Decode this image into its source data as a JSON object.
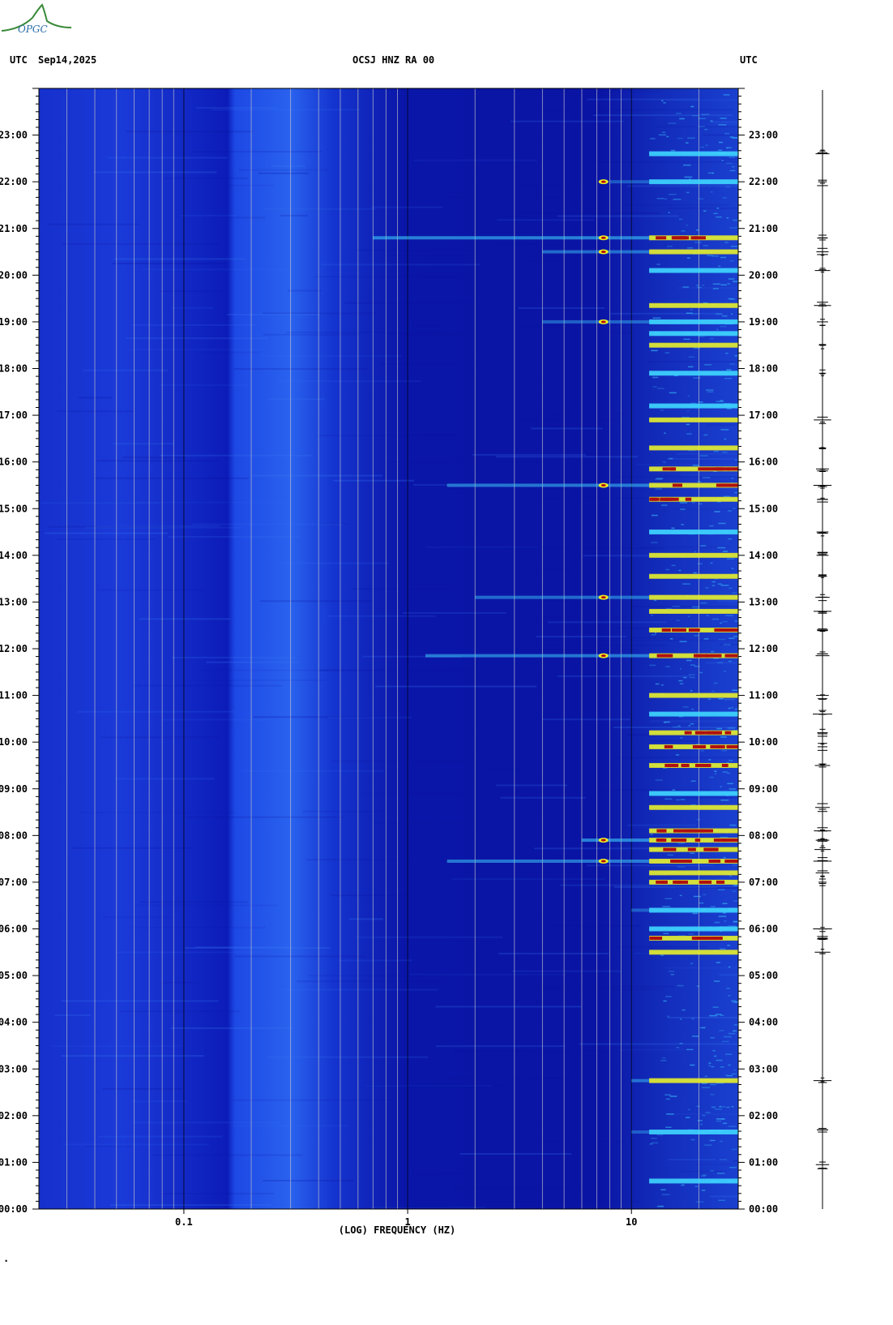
{
  "header": {
    "left_utc": "UTC",
    "date": "Sep14,2025",
    "station": "OCSJ HNZ RA 00",
    "right_utc": "UTC"
  },
  "logo": {
    "text": "OPGC",
    "icon": "mountain-logo-icon"
  },
  "chart_data": {
    "type": "heatmap",
    "title": "OCSJ HNZ RA 00",
    "xlabel": "(LOG) FREQUENCY (HZ)",
    "ylabel": "",
    "x_scale": "log",
    "xlim": [
      0.0225,
      30
    ],
    "x_ticks": [
      {
        "value": 0.1,
        "label": "0.1"
      },
      {
        "value": 1,
        "label": "1"
      },
      {
        "value": 10,
        "label": "10"
      }
    ],
    "ylim_hours": [
      0,
      24
    ],
    "y_ticks": [
      {
        "hour": 0,
        "label": "00:00"
      },
      {
        "hour": 1,
        "label": "01:00"
      },
      {
        "hour": 2,
        "label": "02:00"
      },
      {
        "hour": 3,
        "label": "03:00"
      },
      {
        "hour": 4,
        "label": "04:00"
      },
      {
        "hour": 5,
        "label": "05:00"
      },
      {
        "hour": 6,
        "label": "06:00"
      },
      {
        "hour": 7,
        "label": "07:00"
      },
      {
        "hour": 8,
        "label": "08:00"
      },
      {
        "hour": 9,
        "label": "09:00"
      },
      {
        "hour": 10,
        "label": "10:00"
      },
      {
        "hour": 11,
        "label": "11:00"
      },
      {
        "hour": 12,
        "label": "12:00"
      },
      {
        "hour": 13,
        "label": "13:00"
      },
      {
        "hour": 14,
        "label": "14:00"
      },
      {
        "hour": 15,
        "label": "15:00"
      },
      {
        "hour": 16,
        "label": "16:00"
      },
      {
        "hour": 17,
        "label": "17:00"
      },
      {
        "hour": 18,
        "label": "18:00"
      },
      {
        "hour": 19,
        "label": "19:00"
      },
      {
        "hour": 20,
        "label": "20:00"
      },
      {
        "hour": 21,
        "label": "21:00"
      },
      {
        "hour": 22,
        "label": "22:00"
      },
      {
        "hour": 23,
        "label": "23:00"
      }
    ],
    "grid_frequencies": [
      0.03,
      0.04,
      0.05,
      0.06,
      0.07,
      0.08,
      0.09,
      0.2,
      0.3,
      0.4,
      0.5,
      0.6,
      0.7,
      0.8,
      0.9,
      2,
      3,
      4,
      5,
      6,
      7,
      8,
      9,
      20
    ],
    "colors": {
      "background": "#0a14a8",
      "low": "#1535d0",
      "mid": "#2a6cf0",
      "high": "#40d8ff",
      "peak_yellow": "#f0f020",
      "peak_red": "#b01010"
    },
    "events": [
      {
        "hour": 0.6,
        "fmin": 12,
        "fmax": 30,
        "level": 0.5
      },
      {
        "hour": 1.65,
        "fmin": 10,
        "fmax": 30,
        "level": 0.6
      },
      {
        "hour": 2.75,
        "fmin": 10,
        "fmax": 30,
        "level": 0.8
      },
      {
        "hour": 5.5,
        "fmin": 12,
        "fmax": 30,
        "level": 0.8
      },
      {
        "hour": 5.8,
        "fmin": 12,
        "fmax": 30,
        "level": 0.9
      },
      {
        "hour": 6.0,
        "fmin": 12,
        "fmax": 30,
        "level": 0.7
      },
      {
        "hour": 6.4,
        "fmin": 10,
        "fmax": 30,
        "level": 0.6
      },
      {
        "hour": 7.0,
        "fmin": 12,
        "fmax": 30,
        "level": 0.9
      },
      {
        "hour": 7.2,
        "fmin": 12,
        "fmax": 30,
        "level": 0.8
      },
      {
        "hour": 7.45,
        "fmin": 1.5,
        "fmax": 30,
        "level": 0.9
      },
      {
        "hour": 7.7,
        "fmin": 12,
        "fmax": 30,
        "level": 0.95
      },
      {
        "hour": 7.9,
        "fmin": 6,
        "fmax": 30,
        "level": 1.0
      },
      {
        "hour": 8.1,
        "fmin": 12,
        "fmax": 30,
        "level": 1.0
      },
      {
        "hour": 8.6,
        "fmin": 12,
        "fmax": 30,
        "level": 0.8
      },
      {
        "hour": 8.9,
        "fmin": 12,
        "fmax": 30,
        "level": 0.7
      },
      {
        "hour": 9.5,
        "fmin": 12,
        "fmax": 30,
        "level": 0.9
      },
      {
        "hour": 9.9,
        "fmin": 12,
        "fmax": 30,
        "level": 1.0
      },
      {
        "hour": 10.2,
        "fmin": 12,
        "fmax": 30,
        "level": 0.9
      },
      {
        "hour": 10.6,
        "fmin": 12,
        "fmax": 30,
        "level": 0.6
      },
      {
        "hour": 11.0,
        "fmin": 12,
        "fmax": 30,
        "level": 0.8
      },
      {
        "hour": 11.85,
        "fmin": 1.2,
        "fmax": 30,
        "level": 0.9
      },
      {
        "hour": 12.4,
        "fmin": 12,
        "fmax": 30,
        "level": 0.9
      },
      {
        "hour": 12.8,
        "fmin": 12,
        "fmax": 30,
        "level": 0.8
      },
      {
        "hour": 13.1,
        "fmin": 2,
        "fmax": 30,
        "level": 0.8
      },
      {
        "hour": 13.55,
        "fmin": 12,
        "fmax": 30,
        "level": 0.8
      },
      {
        "hour": 14.0,
        "fmin": 12,
        "fmax": 30,
        "level": 0.8
      },
      {
        "hour": 14.5,
        "fmin": 12,
        "fmax": 30,
        "level": 0.7
      },
      {
        "hour": 15.2,
        "fmin": 12,
        "fmax": 30,
        "level": 1.0
      },
      {
        "hour": 15.5,
        "fmin": 1.5,
        "fmax": 30,
        "level": 0.9
      },
      {
        "hour": 15.85,
        "fmin": 12,
        "fmax": 30,
        "level": 1.0
      },
      {
        "hour": 16.3,
        "fmin": 12,
        "fmax": 30,
        "level": 0.8
      },
      {
        "hour": 16.9,
        "fmin": 12,
        "fmax": 30,
        "level": 0.8
      },
      {
        "hour": 17.2,
        "fmin": 12,
        "fmax": 30,
        "level": 0.7
      },
      {
        "hour": 17.9,
        "fmin": 12,
        "fmax": 30,
        "level": 0.6
      },
      {
        "hour": 18.5,
        "fmin": 12,
        "fmax": 30,
        "level": 0.8
      },
      {
        "hour": 18.75,
        "fmin": 12,
        "fmax": 30,
        "level": 0.7
      },
      {
        "hour": 19.0,
        "fmin": 4,
        "fmax": 30,
        "level": 0.7
      },
      {
        "hour": 19.35,
        "fmin": 12,
        "fmax": 30,
        "level": 0.8
      },
      {
        "hour": 20.1,
        "fmin": 12,
        "fmax": 30,
        "level": 0.7
      },
      {
        "hour": 20.5,
        "fmin": 4,
        "fmax": 30,
        "level": 0.8
      },
      {
        "hour": 20.8,
        "fmin": 0.7,
        "fmax": 30,
        "level": 1.0
      },
      {
        "hour": 22.0,
        "fmin": 8,
        "fmax": 30,
        "level": 0.6
      },
      {
        "hour": 22.6,
        "fmin": 12,
        "fmax": 30,
        "level": 0.5
      }
    ],
    "side_trace_events": [
      0.95,
      1.65,
      2.75,
      5.5,
      5.8,
      6.0,
      7.0,
      7.2,
      7.45,
      7.7,
      7.9,
      8.1,
      8.6,
      9.5,
      9.9,
      10.2,
      10.6,
      11.0,
      11.85,
      12.4,
      12.8,
      13.1,
      13.55,
      14.0,
      14.5,
      15.2,
      15.5,
      15.85,
      16.3,
      16.9,
      17.9,
      18.5,
      19.0,
      19.35,
      20.1,
      20.5,
      20.8,
      22.0,
      22.6
    ]
  },
  "footer": {
    "mark": "."
  }
}
